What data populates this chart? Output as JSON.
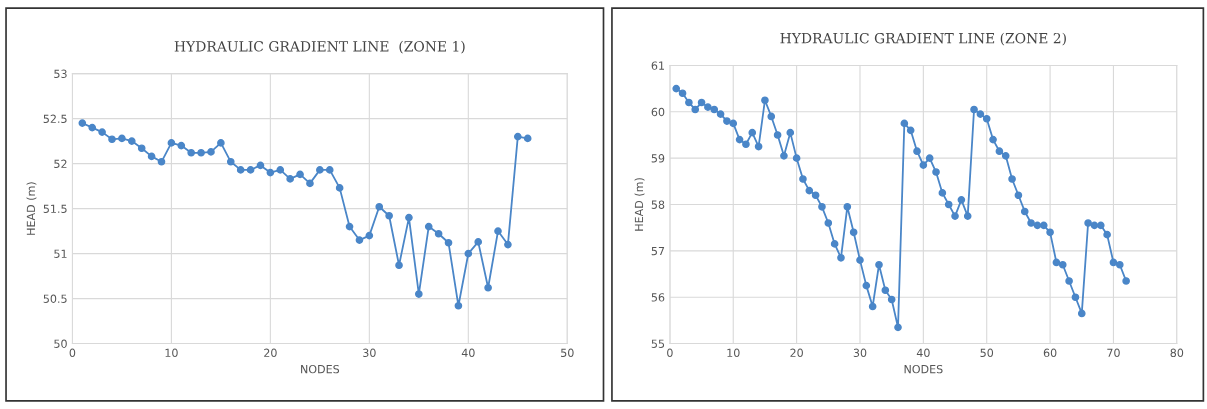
{
  "chart_data": [
    {
      "type": "line",
      "title": "HYDRAULIC GRADIENT LINE  (ZONE 1)",
      "xlabel": "NODES",
      "ylabel": "HEAD (m)",
      "x": [
        1,
        2,
        3,
        4,
        5,
        6,
        7,
        8,
        9,
        10,
        11,
        12,
        13,
        14,
        15,
        16,
        17,
        18,
        19,
        20,
        21,
        22,
        23,
        24,
        25,
        26,
        27,
        28,
        29,
        30,
        31,
        32,
        33,
        34,
        35,
        36,
        37,
        38,
        39,
        40,
        41,
        42,
        43,
        44,
        45,
        46
      ],
      "series": [
        {
          "color": "#4a86c8",
          "values": [
            52.45,
            52.4,
            52.35,
            52.27,
            52.28,
            52.25,
            52.17,
            52.08,
            52.02,
            52.23,
            52.2,
            52.12,
            52.12,
            52.13,
            52.23,
            52.02,
            51.93,
            51.93,
            51.98,
            51.9,
            51.93,
            51.83,
            51.88,
            51.78,
            51.93,
            51.93,
            51.73,
            51.3,
            51.15,
            51.2,
            51.52,
            51.42,
            50.87,
            51.4,
            50.55,
            51.3,
            51.22,
            51.12,
            50.42,
            51.0,
            51.13,
            50.62,
            51.25,
            51.1,
            52.3,
            52.28
          ]
        }
      ],
      "xlim": [
        0,
        50
      ],
      "xticks": [
        0,
        10,
        20,
        30,
        40,
        50
      ],
      "ylim": [
        50,
        53
      ],
      "yticks": [
        50,
        50.5,
        51,
        51.5,
        52,
        52.5,
        53
      ],
      "grid": true,
      "marker": "circle",
      "line_style": "solid"
    },
    {
      "type": "line",
      "title": "HYDRAULIC GRADIENT LINE (ZONE 2)",
      "xlabel": "NODES",
      "ylabel": "HEAD (m)",
      "x": [
        1,
        2,
        3,
        4,
        5,
        6,
        7,
        8,
        9,
        10,
        11,
        12,
        13,
        14,
        15,
        16,
        17,
        18,
        19,
        20,
        21,
        22,
        23,
        24,
        25,
        26,
        27,
        28,
        29,
        30,
        31,
        32,
        33,
        34,
        35,
        36,
        37,
        38,
        39,
        40,
        41,
        42,
        43,
        44,
        45,
        46,
        47,
        48,
        49,
        50,
        51,
        52,
        53,
        54,
        55,
        56,
        57,
        58,
        59,
        60,
        61,
        62,
        63,
        64,
        65,
        66,
        67,
        68,
        69,
        70,
        71,
        72
      ],
      "series": [
        {
          "color": "#4a86c8",
          "values": [
            60.5,
            60.4,
            60.2,
            60.05,
            60.2,
            60.1,
            60.05,
            59.95,
            59.8,
            59.75,
            59.4,
            59.3,
            59.55,
            59.25,
            60.25,
            59.9,
            59.5,
            59.05,
            59.55,
            59.0,
            58.55,
            58.3,
            58.2,
            57.95,
            57.6,
            57.15,
            56.85,
            57.95,
            57.4,
            56.8,
            56.25,
            55.8,
            56.7,
            56.15,
            55.95,
            55.35,
            59.75,
            59.6,
            59.15,
            58.85,
            59.0,
            58.7,
            58.25,
            58.0,
            57.75,
            58.1,
            57.75,
            60.05,
            59.95,
            59.85,
            59.4,
            59.15,
            59.05,
            58.55,
            58.2,
            57.85,
            57.6,
            57.55,
            57.55,
            57.4,
            56.75,
            56.7,
            56.35,
            56.0,
            55.65,
            57.6,
            57.55,
            57.55,
            57.35,
            56.75,
            56.7,
            56.35
          ]
        }
      ],
      "xlim": [
        0,
        80
      ],
      "xticks": [
        0,
        10,
        20,
        30,
        40,
        50,
        60,
        70,
        80
      ],
      "ylim": [
        55,
        61
      ],
      "yticks": [
        55,
        56,
        57,
        58,
        59,
        60,
        61
      ],
      "grid": true,
      "marker": "circle",
      "line_style": "solid"
    }
  ]
}
